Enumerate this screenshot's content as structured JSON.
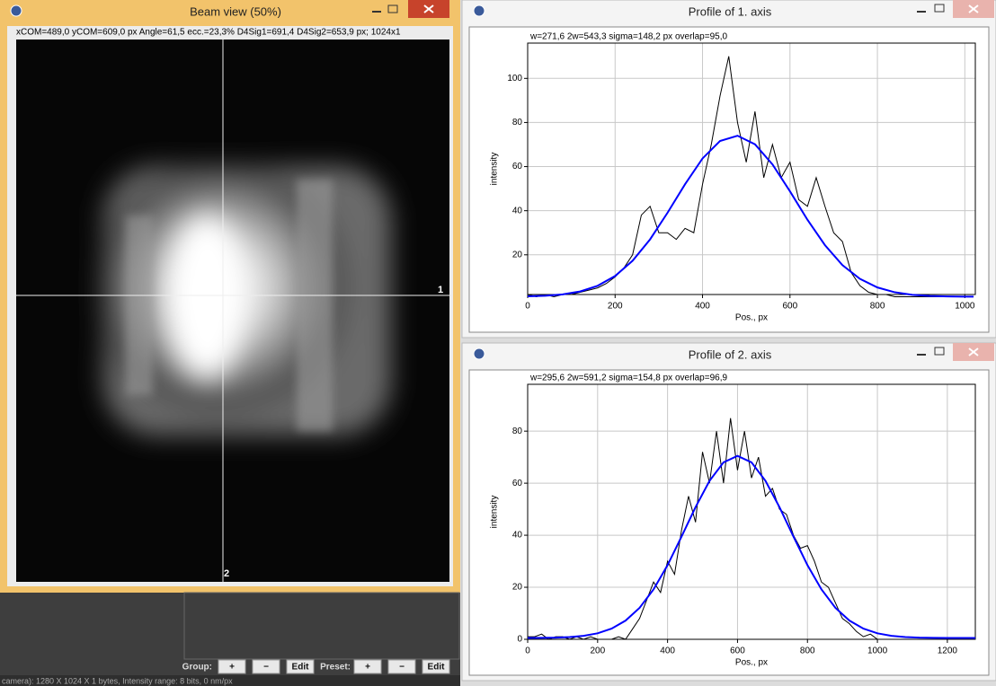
{
  "beam_window": {
    "title": "Beam view (50%)",
    "info": "xCOM=489,0 yCOM=609,0 px Angle=61,5 ecc.=23,3% D4Sig1=691,4  D4Sig2=653,9 px;  1024x1",
    "marker_1": "1",
    "marker_2": "2"
  },
  "toolbar": {
    "group_label": "Group:",
    "group_buttons": [
      "+",
      "−",
      "Edit"
    ],
    "preset_label": "Preset:",
    "preset_buttons": [
      "+",
      "−",
      "Edit"
    ]
  },
  "status": "camera): 1280 X 1024 X 1 bytes, Intensity range: 8 bits, 0 nm/px",
  "chart_data": [
    {
      "type": "line",
      "window_title": "Profile of 1. axis",
      "title": "w=271,6  2w=543,3  sigma=148,2 px  overlap=95,0",
      "xlabel": "Pos., px",
      "ylabel": "intensity",
      "xlim": [
        0,
        1024
      ],
      "ylim": [
        2,
        116
      ],
      "xticks": [
        0,
        200,
        400,
        600,
        800,
        1000
      ],
      "yticks": [
        20,
        40,
        60,
        80,
        100
      ],
      "grid": true,
      "series": [
        {
          "color": "#000000",
          "x": [
            0,
            20,
            40,
            60,
            80,
            100,
            120,
            140,
            160,
            180,
            200,
            220,
            240,
            260,
            280,
            300,
            320,
            340,
            360,
            380,
            400,
            420,
            440,
            460,
            480,
            500,
            520,
            540,
            560,
            580,
            600,
            620,
            640,
            660,
            680,
            700,
            720,
            740,
            760,
            780,
            800,
            820,
            840,
            860,
            880,
            900,
            920,
            940,
            960,
            980,
            1000,
            1020
          ],
          "values": [
            2,
            1,
            2,
            1,
            2,
            2,
            3,
            4,
            5,
            7,
            10,
            14,
            20,
            38,
            42,
            30,
            30,
            27,
            32,
            30,
            52,
            70,
            92,
            110,
            80,
            62,
            85,
            55,
            70,
            55,
            62,
            45,
            42,
            55,
            42,
            30,
            26,
            12,
            6,
            3,
            2,
            2,
            1,
            1,
            1,
            1,
            1,
            1,
            1,
            1,
            1,
            1
          ]
        },
        {
          "color": "#0000ff",
          "x": [
            0,
            40,
            80,
            120,
            160,
            200,
            240,
            280,
            320,
            360,
            400,
            440,
            480,
            520,
            560,
            600,
            640,
            680,
            720,
            760,
            800,
            840,
            880,
            920,
            960,
            1000,
            1020
          ],
          "values": [
            1.16,
            1.43,
            2.06,
            3.39,
            5.96,
            10.4,
            17.3,
            27,
            39.1,
            52,
            63.7,
            71.6,
            74,
            70.1,
            61,
            48.8,
            35.9,
            24.4,
            15.3,
            9.1,
            5.2,
            3,
            1.85,
            1.34,
            1.12,
            1.04,
            1.02
          ]
        }
      ]
    },
    {
      "type": "line",
      "window_title": "Profile of 2. axis",
      "title": "w=295,6  2w=591,2  sigma=154,8 px  overlap=96,9",
      "xlabel": "Pos., px",
      "ylabel": "intensity",
      "xlim": [
        0,
        1280
      ],
      "ylim": [
        0,
        98
      ],
      "xticks": [
        0,
        200,
        400,
        600,
        800,
        1000,
        1200
      ],
      "yticks": [
        0,
        20,
        40,
        60,
        80
      ],
      "grid": true,
      "series": [
        {
          "color": "#000000",
          "x": [
            0,
            20,
            40,
            60,
            80,
            100,
            120,
            140,
            160,
            180,
            200,
            220,
            240,
            260,
            280,
            300,
            320,
            340,
            360,
            380,
            400,
            420,
            440,
            460,
            480,
            500,
            520,
            540,
            560,
            580,
            600,
            620,
            640,
            660,
            680,
            700,
            720,
            740,
            760,
            780,
            800,
            820,
            840,
            860,
            880,
            900,
            920,
            940,
            960,
            980,
            1000,
            1020,
            1040,
            1060,
            1080,
            1100,
            1120,
            1140,
            1160,
            1180,
            1200,
            1220,
            1240,
            1260,
            1280
          ],
          "values": [
            1,
            1,
            2,
            0,
            1,
            1,
            0,
            1,
            0,
            1,
            0,
            0,
            0,
            1,
            0,
            4,
            8,
            15,
            22,
            18,
            30,
            25,
            42,
            55,
            45,
            72,
            60,
            80,
            60,
            85,
            65,
            80,
            62,
            70,
            55,
            58,
            50,
            48,
            40,
            35,
            36,
            30,
            22,
            20,
            14,
            8,
            6,
            3,
            1,
            2,
            0,
            0,
            0,
            0,
            0,
            0,
            0,
            0,
            0,
            0,
            0,
            0,
            0,
            0,
            0
          ]
        },
        {
          "color": "#0000ff",
          "x": [
            0,
            40,
            80,
            120,
            160,
            200,
            240,
            280,
            320,
            360,
            400,
            440,
            480,
            520,
            560,
            600,
            640,
            680,
            720,
            760,
            800,
            840,
            880,
            920,
            960,
            1000,
            1040,
            1080,
            1120,
            1160,
            1200,
            1240,
            1280
          ],
          "values": [
            0.5,
            0.56,
            0.64,
            0.86,
            1.33,
            2.3,
            4.1,
            7.2,
            12.1,
            19.2,
            28.5,
            39.5,
            50.8,
            60.9,
            68,
            70.5,
            68,
            60.9,
            50.8,
            39.5,
            28.5,
            19.2,
            12.1,
            7.2,
            4.1,
            2.3,
            1.33,
            0.86,
            0.64,
            0.56,
            0.5,
            0.5,
            0.5
          ]
        }
      ]
    }
  ]
}
